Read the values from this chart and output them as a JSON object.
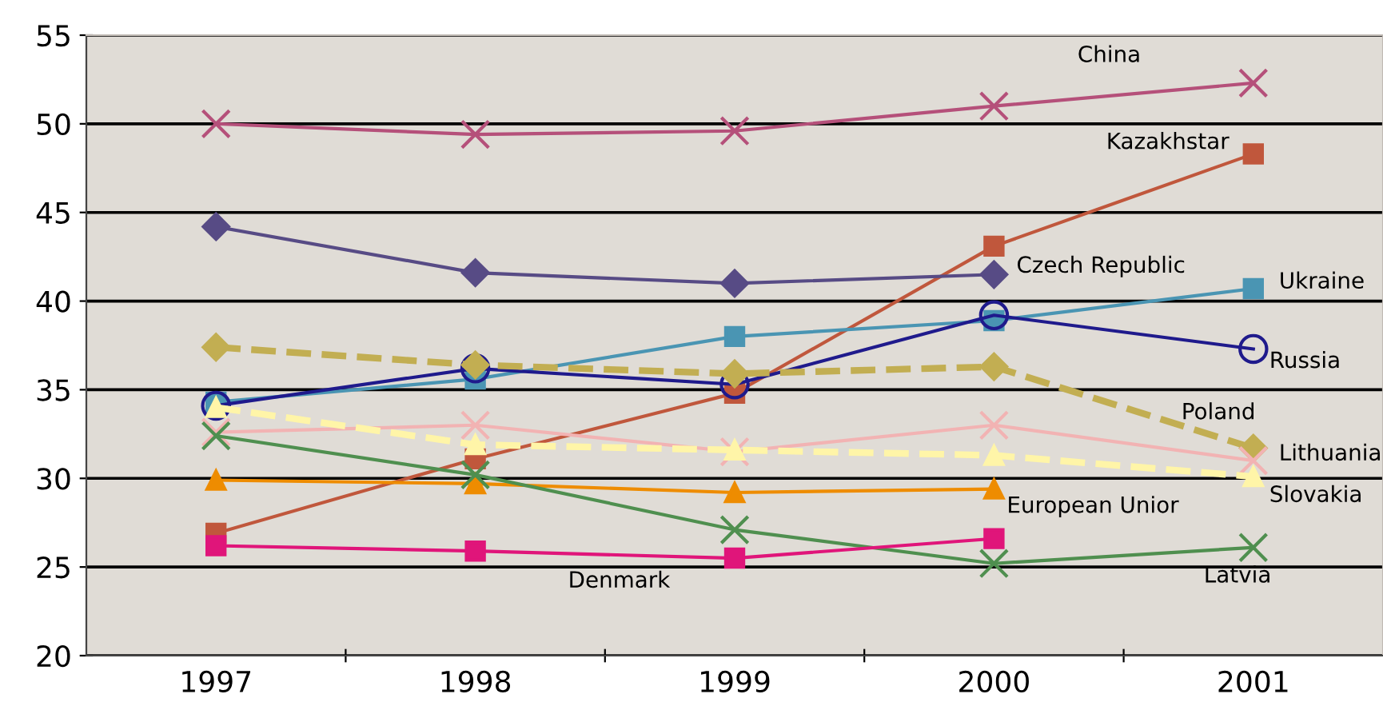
{
  "chart_data": {
    "type": "line",
    "x": [
      1997,
      1998,
      1999,
      2000,
      2001
    ],
    "xlim": [
      1996.5,
      2001.5
    ],
    "xticks": [
      1997,
      {
        "value": 1997.5,
        "label": null
      },
      1998,
      {
        "value": 1998.5,
        "label": null
      },
      1999,
      {
        "value": 1999.5,
        "label": null
      },
      2000,
      {
        "value": 2000.5,
        "label": null
      },
      2001
    ],
    "ylim": [
      20,
      55
    ],
    "yticks": [
      20,
      25,
      30,
      35,
      40,
      45,
      50,
      55
    ],
    "grid": "y",
    "series": [
      {
        "name": "China",
        "color": "#b5507a",
        "marker": "cross",
        "line_style": "solid",
        "values": [
          50.0,
          49.4,
          49.6,
          51.0,
          52.3
        ]
      },
      {
        "name": "Kazakhstar",
        "color": "#c0573c",
        "marker": "square",
        "line_style": "solid",
        "values": [
          26.9,
          31.1,
          34.8,
          43.1,
          48.3
        ]
      },
      {
        "name": "Czech Republic",
        "color": "#574b85",
        "marker": "diamond",
        "line_style": "solid",
        "values": [
          44.2,
          41.6,
          41.0,
          41.5,
          null
        ]
      },
      {
        "name": "Ukraine",
        "color": "#4a95b3",
        "marker": "square",
        "line_style": "solid",
        "values": [
          34.3,
          35.6,
          38.0,
          38.9,
          40.7
        ]
      },
      {
        "name": "Russia",
        "color": "#1f1a8c",
        "marker": "circle",
        "line_style": "solid",
        "values": [
          34.1,
          36.2,
          35.3,
          39.2,
          37.3
        ]
      },
      {
        "name": "Poland",
        "color": "#c2ae52",
        "marker": "diamond",
        "line_style": "dashed",
        "values": [
          37.4,
          36.4,
          35.9,
          36.3,
          31.7
        ]
      },
      {
        "name": "Lithuania",
        "color": "#f2b3b3",
        "marker": "cross",
        "line_style": "solid",
        "values": [
          32.6,
          33.0,
          31.5,
          33.0,
          31.0
        ]
      },
      {
        "name": "Slovakia",
        "color": "#fff5a8",
        "marker": "triangle",
        "line_style": "dashed",
        "values": [
          34.0,
          31.9,
          31.6,
          31.3,
          30.1
        ]
      },
      {
        "name": "European Unior",
        "color": "#ee8c00",
        "marker": "triangle",
        "line_style": "solid",
        "values": [
          29.9,
          29.7,
          29.2,
          29.4,
          null
        ]
      },
      {
        "name": "Latvia",
        "color": "#4f8f4f",
        "marker": "cross",
        "line_style": "solid",
        "values": [
          32.4,
          30.2,
          27.1,
          25.2,
          26.1
        ]
      },
      {
        "name": "Denmark",
        "color": "#e0157a",
        "marker": "square",
        "line_style": "solid",
        "values": [
          26.2,
          25.9,
          25.5,
          26.6,
          null
        ]
      }
    ]
  }
}
